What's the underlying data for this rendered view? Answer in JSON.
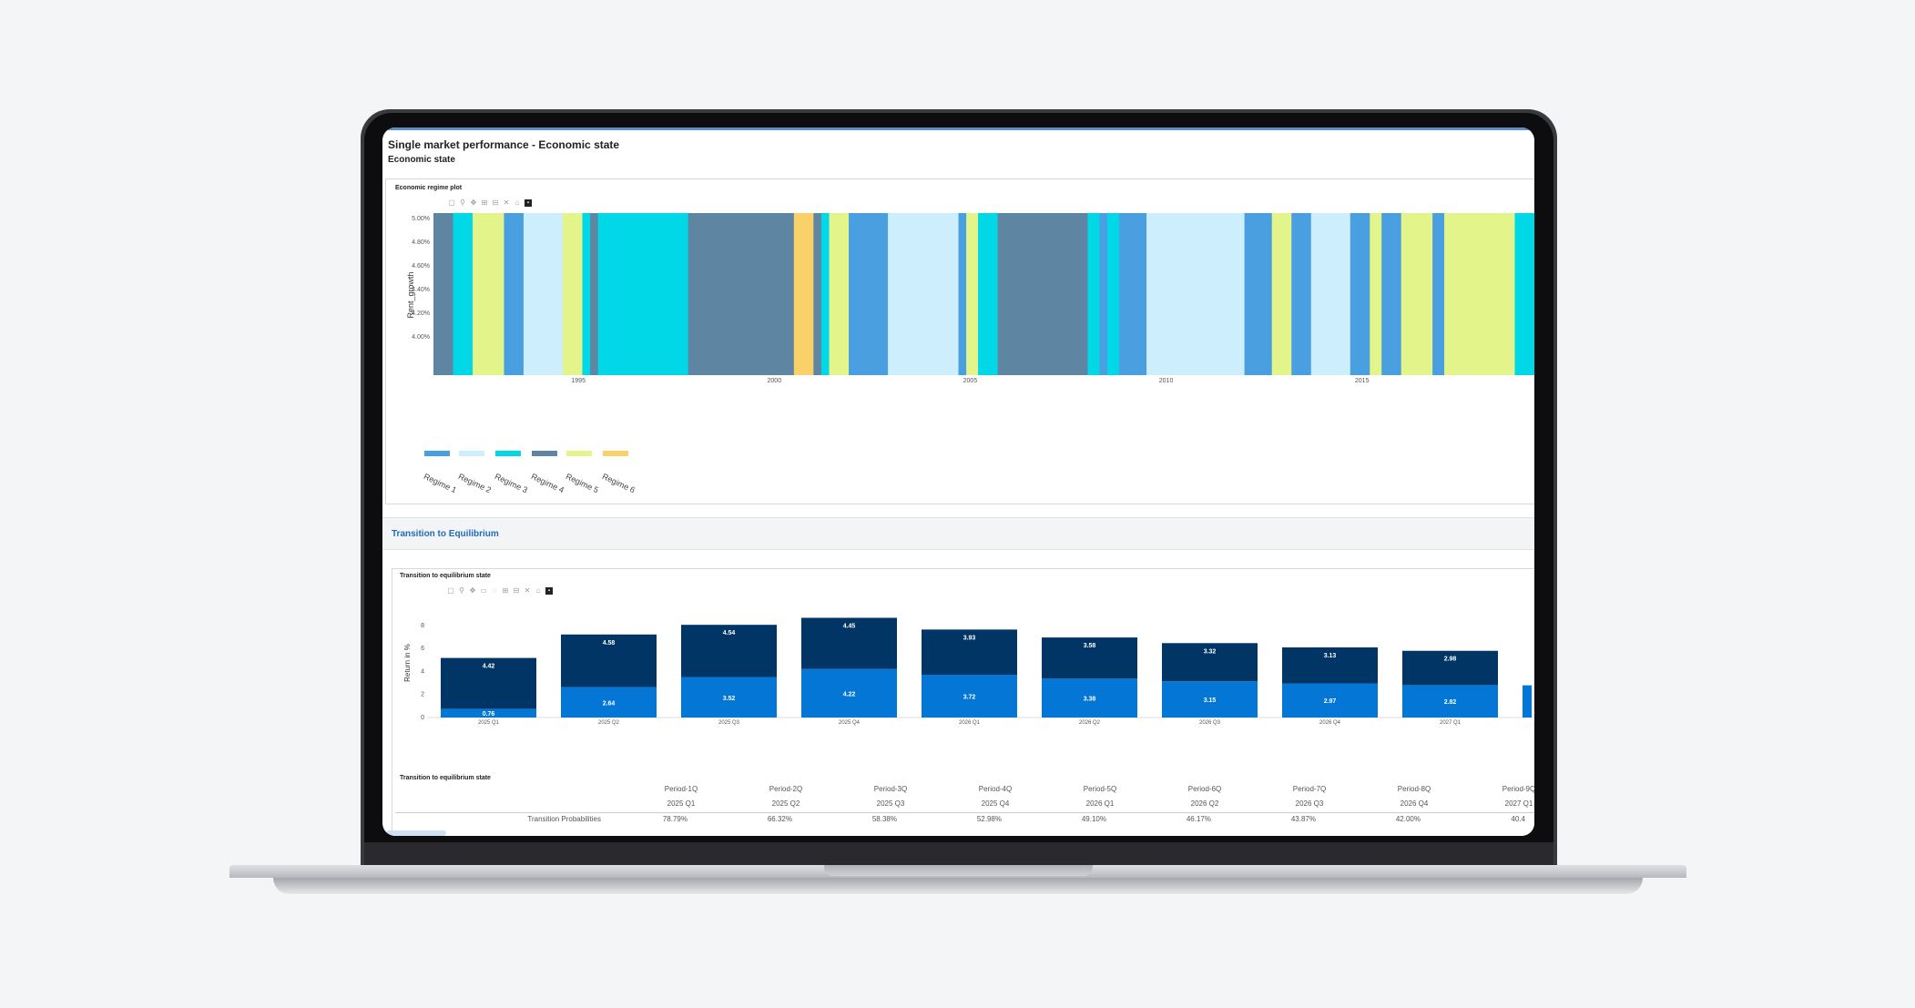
{
  "page": {
    "title": "Single market performance - Economic state",
    "subtitle": "Economic state"
  },
  "regime_panel": {
    "title": "Economic regime plot",
    "legend": [
      "Regime 1",
      "Regime 2",
      "Regime 3",
      "Regime 4",
      "Regime 5",
      "Regime 6"
    ]
  },
  "equilibrium": {
    "section_title": "Transition to Equilibrium",
    "chart_title": "Transition to equilibrium state",
    "table_title": "Transition to equilibrium state",
    "table": {
      "periods": [
        "Period-1Q",
        "Period-2Q",
        "Period-3Q",
        "Period-4Q",
        "Period-5Q",
        "Period-6Q",
        "Period-7Q",
        "Period-8Q",
        "Period-9Q"
      ],
      "quarters": [
        "2025 Q1",
        "2025 Q2",
        "2025 Q3",
        "2025 Q4",
        "2026 Q1",
        "2026 Q2",
        "2026 Q3",
        "2026 Q4",
        "2027 Q1"
      ],
      "row_label": "Transition Probabilities",
      "values": [
        "78.79%",
        "66.32%",
        "58.38%",
        "52.98%",
        "49.10%",
        "46.17%",
        "43.87%",
        "42.00%",
        "40.4"
      ]
    }
  },
  "colors": {
    "regime1": "#4a9fe0",
    "regime2": "#cdeefc",
    "regime3": "#00d8e8",
    "regime4": "#5e86a3",
    "regime5": "#e3f58a",
    "regime6": "#fad169",
    "bar_dark": "#003566",
    "bar_light": "#0476d6"
  },
  "chart_data": [
    {
      "type": "bar",
      "title": "",
      "ylabel": "Rent_growth",
      "ylim": [
        3.9,
        5.0
      ],
      "yticks": [
        "5.00%",
        "4.80%",
        "4.60%",
        "4.40%",
        "4.20%",
        "4.00%"
      ],
      "xticks": [
        "1995",
        "2000",
        "2005",
        "2010",
        "2015"
      ],
      "xlim": [
        1991.3,
        2019.4
      ],
      "regime_segments": [
        {
          "start": 1991.3,
          "end": 1991.8,
          "regime": 4
        },
        {
          "start": 1991.8,
          "end": 1992.3,
          "regime": 3
        },
        {
          "start": 1992.3,
          "end": 1993.1,
          "regime": 5
        },
        {
          "start": 1993.1,
          "end": 1993.6,
          "regime": 1
        },
        {
          "start": 1993.6,
          "end": 1994.6,
          "regime": 2
        },
        {
          "start": 1994.6,
          "end": 1995.1,
          "regime": 5
        },
        {
          "start": 1995.1,
          "end": 1995.3,
          "regime": 3
        },
        {
          "start": 1995.3,
          "end": 1995.5,
          "regime": 4
        },
        {
          "start": 1995.5,
          "end": 1997.8,
          "regime": 3
        },
        {
          "start": 1997.8,
          "end": 2000.5,
          "regime": 4
        },
        {
          "start": 2000.5,
          "end": 2001.0,
          "regime": 6
        },
        {
          "start": 2001.0,
          "end": 2001.2,
          "regime": 4
        },
        {
          "start": 2001.2,
          "end": 2001.4,
          "regime": 3
        },
        {
          "start": 2001.4,
          "end": 2001.9,
          "regime": 5
        },
        {
          "start": 2001.9,
          "end": 2002.9,
          "regime": 1
        },
        {
          "start": 2002.9,
          "end": 2004.7,
          "regime": 2
        },
        {
          "start": 2004.7,
          "end": 2004.9,
          "regime": 1
        },
        {
          "start": 2004.9,
          "end": 2005.2,
          "regime": 5
        },
        {
          "start": 2005.2,
          "end": 2005.7,
          "regime": 3
        },
        {
          "start": 2005.7,
          "end": 2008.0,
          "regime": 4
        },
        {
          "start": 2008.0,
          "end": 2008.3,
          "regime": 3
        },
        {
          "start": 2008.3,
          "end": 2008.5,
          "regime": 1
        },
        {
          "start": 2008.5,
          "end": 2008.8,
          "regime": 3
        },
        {
          "start": 2008.8,
          "end": 2009.5,
          "regime": 1
        },
        {
          "start": 2009.5,
          "end": 2012.0,
          "regime": 2
        },
        {
          "start": 2012.0,
          "end": 2012.7,
          "regime": 1
        },
        {
          "start": 2012.7,
          "end": 2013.2,
          "regime": 5
        },
        {
          "start": 2013.2,
          "end": 2013.7,
          "regime": 1
        },
        {
          "start": 2013.7,
          "end": 2014.7,
          "regime": 2
        },
        {
          "start": 2014.7,
          "end": 2015.2,
          "regime": 1
        },
        {
          "start": 2015.2,
          "end": 2015.5,
          "regime": 5
        },
        {
          "start": 2015.5,
          "end": 2016.0,
          "regime": 1
        },
        {
          "start": 2016.0,
          "end": 2016.8,
          "regime": 5
        },
        {
          "start": 2016.8,
          "end": 2017.1,
          "regime": 1
        },
        {
          "start": 2017.1,
          "end": 2018.9,
          "regime": 5
        },
        {
          "start": 2018.9,
          "end": 2019.4,
          "regime": 3
        }
      ]
    },
    {
      "type": "bar",
      "title": "",
      "ylabel": "Return in %",
      "ylim": [
        0,
        9.5
      ],
      "yticks": [
        0,
        2,
        4,
        6,
        8
      ],
      "categories": [
        "2025 Q1",
        "2025 Q2",
        "2025 Q3",
        "2025 Q4",
        "2026 Q1",
        "2026 Q2",
        "2026 Q3",
        "2026 Q4",
        "2027 Q1"
      ],
      "stacked": true,
      "series": [
        {
          "values": [
            0.76,
            2.64,
            3.52,
            4.22,
            3.72,
            3.38,
            3.15,
            2.97,
            2.82
          ]
        },
        {
          "values": [
            4.42,
            4.58,
            4.54,
            4.45,
            3.93,
            3.58,
            3.32,
            3.13,
            2.98
          ]
        }
      ]
    }
  ]
}
